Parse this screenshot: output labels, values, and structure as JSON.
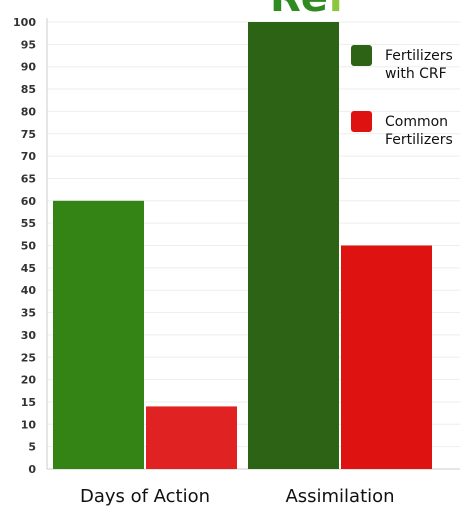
{
  "logo": {
    "part1": "Re",
    "part2": "f"
  },
  "chart_data": {
    "type": "bar",
    "title": "",
    "xlabel": "",
    "ylabel": "",
    "categories": [
      "Days of Action",
      "Assimilation"
    ],
    "ylim": [
      0,
      100
    ],
    "yticks": [
      0,
      5,
      10,
      15,
      20,
      25,
      30,
      35,
      40,
      45,
      50,
      55,
      60,
      65,
      70,
      75,
      80,
      85,
      90,
      95,
      100
    ],
    "grid": true,
    "legend_position": "top-right",
    "series": [
      {
        "name": "Fertilizers with CRF",
        "values": [
          60,
          100
        ],
        "colors": [
          "#338315",
          "#2d6315"
        ],
        "legend_lines": [
          "Fertilizers",
          "with CRF"
        ],
        "legend_color": "#2d6315"
      },
      {
        "name": "Common Fertilizers",
        "values": [
          14,
          50
        ],
        "colors": [
          "#e02222",
          "#df1212"
        ],
        "legend_lines": [
          "Common",
          "Fertilizers"
        ],
        "legend_color": "#df1212"
      }
    ]
  }
}
